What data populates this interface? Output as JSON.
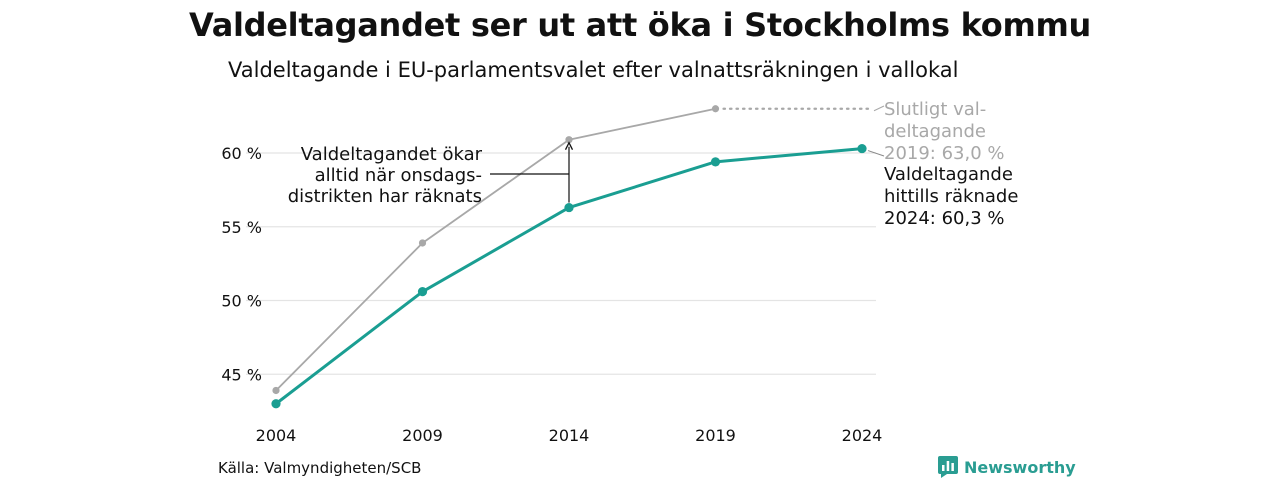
{
  "title": "Valdeltagandet ser ut att öka i Stockholms kommu",
  "subtitle": "Valdeltagande i EU-parlamentsvalet efter valnattsräkningen i vallokal",
  "source": "Källa: Valmyndigheten/SCB",
  "brand": "Newsworthy",
  "colors": {
    "counted": "#1a9e92",
    "final": "#a8a8a8",
    "grid": "#e4e4e4",
    "annotation": "#111111",
    "brand": "#2a9d92"
  },
  "chart_data": {
    "type": "line",
    "categories": [
      "2004",
      "2009",
      "2014",
      "2019",
      "2024"
    ],
    "ylim": [
      43,
      62
    ],
    "yticks": [
      45,
      50,
      55,
      60
    ],
    "ytick_labels": [
      "45 %",
      "50 %",
      "55 %",
      "60 %"
    ],
    "grid": true,
    "series": [
      {
        "key": "final",
        "values": [
          43.9,
          53.9,
          60.9,
          63.0,
          null
        ],
        "label_lines": [
          "Slutligt val-",
          "deltagande",
          "2019: 63,0 %"
        ]
      },
      {
        "key": "counted",
        "values": [
          43.0,
          50.6,
          56.3,
          59.4,
          60.3
        ],
        "label_lines": [
          "Valdeltagande",
          "hittills räknade",
          "2024: 60,3 %"
        ]
      }
    ],
    "annotation": {
      "lines": [
        "Valdeltagandet ökar",
        "alltid när onsdags-",
        "distrikten har räknats"
      ],
      "category": "2014"
    }
  }
}
